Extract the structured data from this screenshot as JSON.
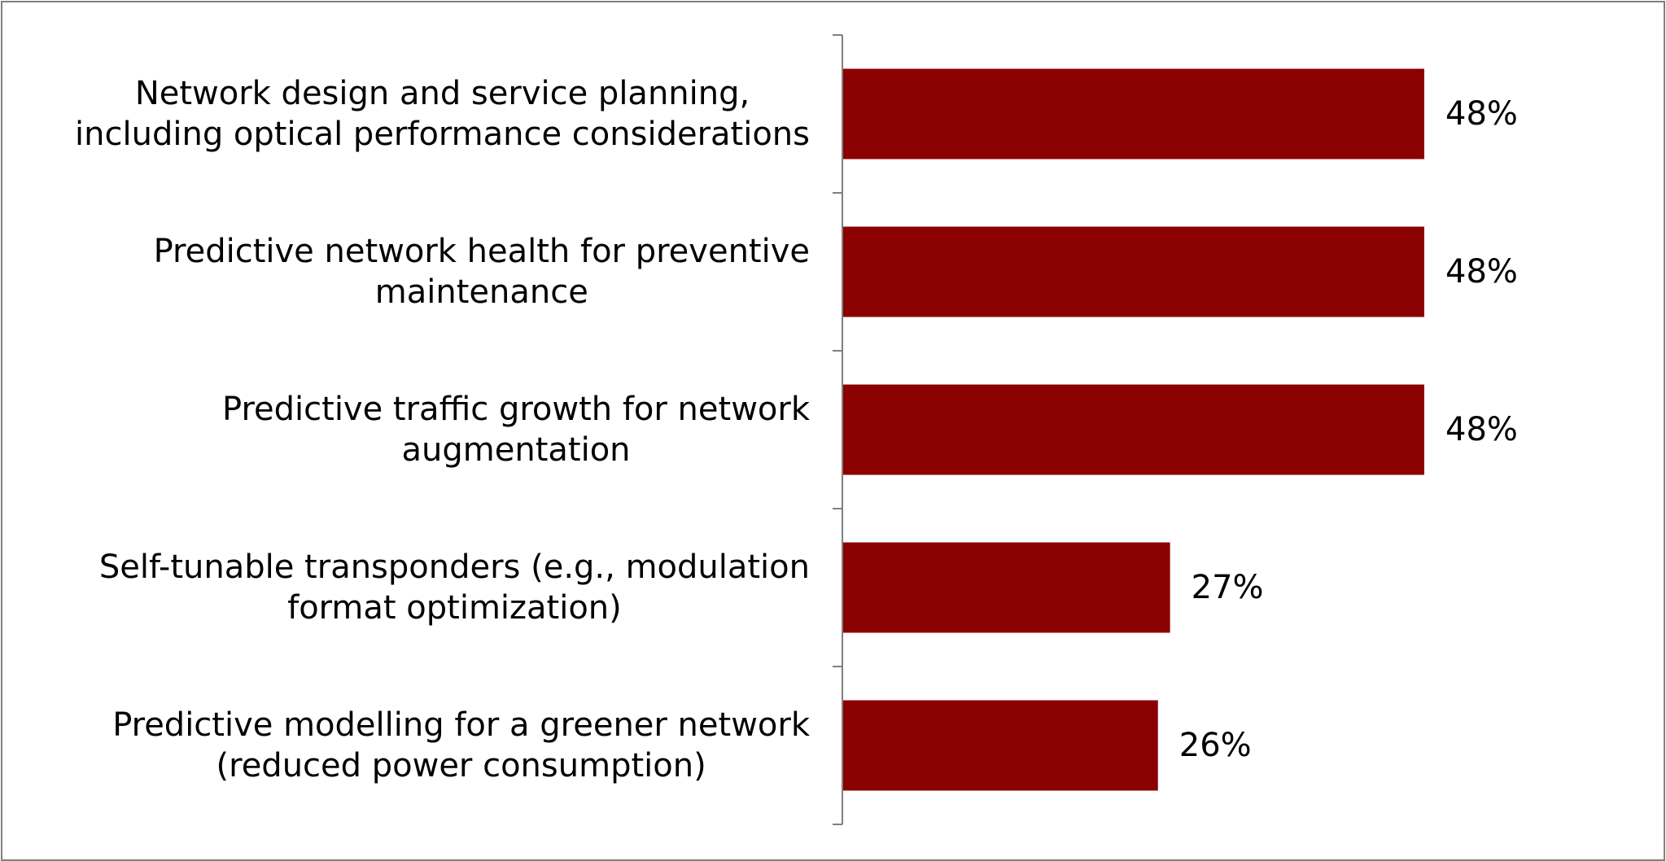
{
  "chart_data": {
    "type": "bar",
    "orientation": "horizontal",
    "categories": [
      [
        "Network design and service planning,",
        "including optical performance considerations"
      ],
      [
        "Predictive network health for preventive",
        "maintenance"
      ],
      [
        "Predictive traffic growth for network",
        "augmentation"
      ],
      [
        "Self-tunable transponders (e.g., modulation",
        "format optimization)"
      ],
      [
        "Predictive modelling for a greener network",
        "(reduced power consumption)"
      ]
    ],
    "values": [
      48,
      48,
      48,
      27,
      26
    ],
    "value_labels": [
      "48%",
      "48%",
      "48%",
      "27%",
      "26%"
    ],
    "xlim": [
      0,
      100
    ],
    "grid": false,
    "legend": "none",
    "bar_color": "#8b0000",
    "axis_color": "#7f7f7f"
  }
}
